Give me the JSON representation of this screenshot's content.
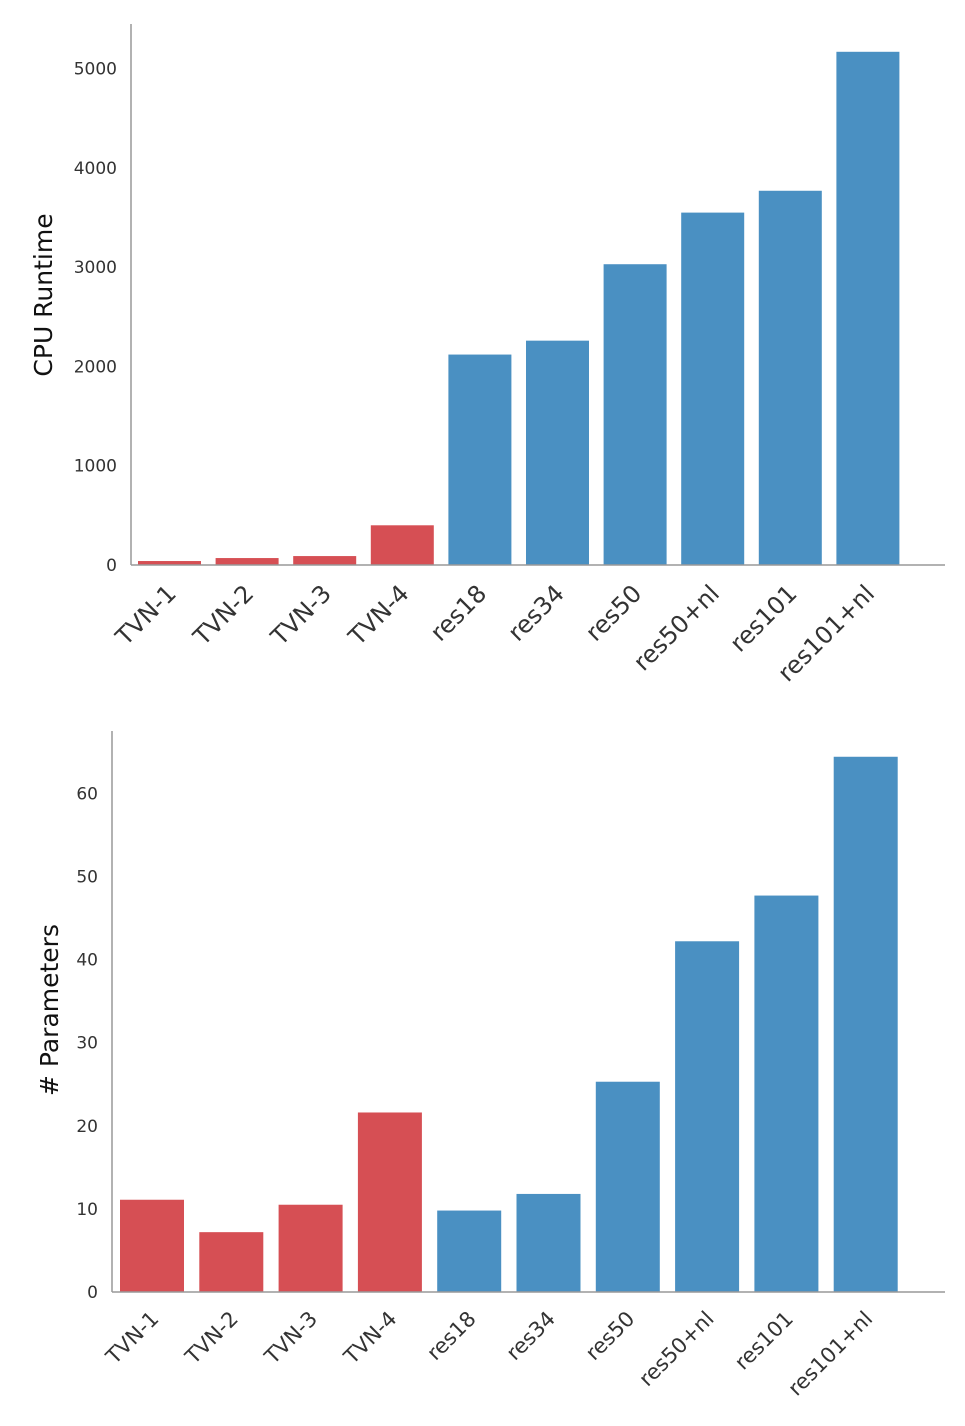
{
  "colors": {
    "tvn": "#d64f54",
    "resnet": "#4a90c2"
  },
  "chart_data": [
    {
      "type": "bar",
      "ylabel": "CPU Runtime",
      "xlabel": "",
      "ylim": [
        0,
        5450
      ],
      "yticks": [
        0,
        1000,
        2000,
        3000,
        4000,
        5000
      ],
      "grid": false,
      "categories": [
        "TVN-1",
        "TVN-2",
        "TVN-3",
        "TVN-4",
        "res18",
        "res34",
        "res50",
        "res50+nl",
        "res101",
        "res101+nl"
      ],
      "values": [
        40,
        70,
        90,
        400,
        2120,
        2260,
        3030,
        3550,
        3770,
        5170
      ],
      "groups": [
        "tvn",
        "tvn",
        "tvn",
        "tvn",
        "resnet",
        "resnet",
        "resnet",
        "resnet",
        "resnet",
        "resnet"
      ]
    },
    {
      "type": "bar",
      "ylabel": "# Parameters",
      "xlabel": "",
      "ylim": [
        0,
        67.5
      ],
      "yticks": [
        0,
        10,
        20,
        30,
        40,
        50,
        60
      ],
      "grid": false,
      "categories": [
        "TVN-1",
        "TVN-2",
        "TVN-3",
        "TVN-4",
        "res18",
        "res34",
        "res50",
        "res50+nl",
        "res101",
        "res101+nl"
      ],
      "values": [
        11.1,
        7.2,
        10.5,
        21.6,
        9.8,
        11.8,
        25.3,
        42.2,
        47.7,
        64.4
      ],
      "groups": [
        "tvn",
        "tvn",
        "tvn",
        "tvn",
        "resnet",
        "resnet",
        "resnet",
        "resnet",
        "resnet",
        "resnet"
      ]
    }
  ]
}
